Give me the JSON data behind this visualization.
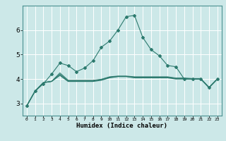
{
  "xlabel": "Humidex (Indice chaleur)",
  "x": [
    0,
    1,
    2,
    3,
    4,
    5,
    6,
    7,
    8,
    9,
    10,
    11,
    12,
    13,
    14,
    15,
    16,
    17,
    18,
    19,
    20,
    21,
    22,
    23
  ],
  "line1": [
    2.9,
    3.5,
    3.8,
    4.2,
    4.65,
    4.55,
    4.3,
    4.45,
    4.75,
    5.3,
    5.55,
    6.0,
    6.55,
    6.6,
    5.7,
    5.2,
    4.95,
    4.55,
    4.5,
    4.0,
    4.0,
    4.0,
    3.65,
    4.0
  ],
  "line2": [
    2.9,
    3.5,
    3.85,
    3.9,
    4.15,
    3.9,
    3.9,
    3.9,
    3.9,
    3.95,
    4.05,
    4.1,
    4.1,
    4.05,
    4.05,
    4.05,
    4.05,
    4.05,
    4.0,
    4.0,
    4.0,
    4.0,
    3.65,
    4.0
  ],
  "line3": [
    2.9,
    3.5,
    3.85,
    3.9,
    4.2,
    3.92,
    3.92,
    3.92,
    3.92,
    3.97,
    4.07,
    4.1,
    4.1,
    4.07,
    4.07,
    4.07,
    4.07,
    4.07,
    4.02,
    4.02,
    4.0,
    4.0,
    3.65,
    4.0
  ],
  "line4": [
    2.9,
    3.5,
    3.85,
    3.9,
    4.25,
    3.95,
    3.95,
    3.95,
    3.95,
    3.99,
    4.09,
    4.12,
    4.12,
    4.09,
    4.09,
    4.09,
    4.09,
    4.09,
    4.04,
    4.04,
    4.02,
    4.02,
    3.65,
    4.0
  ],
  "xlim": [
    -0.5,
    23.5
  ],
  "ylim": [
    2.5,
    7.0
  ],
  "yticks": [
    3,
    4,
    5,
    6
  ],
  "bg_color": "#cce8e8",
  "line_color": "#2d7a6e",
  "grid_major_color": "#ffffff",
  "grid_minor_color": "#b8dada",
  "spine_color": "#4a9090"
}
